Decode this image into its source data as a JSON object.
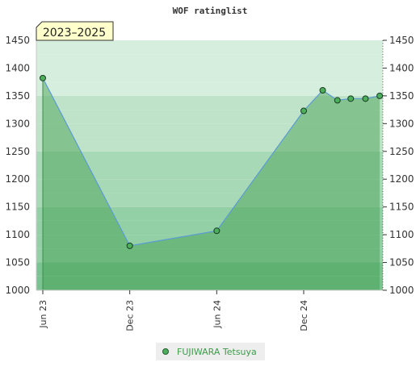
{
  "chart_data": {
    "type": "area",
    "title": "WOF ratinglist",
    "period_badge": "2023–2025",
    "xlabel": "",
    "ylabel": "",
    "ylim": [
      1000,
      1450
    ],
    "y_ticks": [
      1000,
      1050,
      1100,
      1150,
      1200,
      1250,
      1300,
      1350,
      1400,
      1450
    ],
    "x_ticks": [
      "Jun 23",
      "Dec 23",
      "Jun 24",
      "Dec 24"
    ],
    "x_tick_dates": [
      "2023-06-01",
      "2023-12-01",
      "2024-06-01",
      "2024-12-01"
    ],
    "grid": true,
    "legend_position": "bottom",
    "series": [
      {
        "name": "FUJIWARA Tetsuya",
        "color": "#3d9b4c",
        "line_color": "#5b9bd5",
        "points": [
          {
            "x": "2023-06-01",
            "y": 1382
          },
          {
            "x": "2023-12-01",
            "y": 1080
          },
          {
            "x": "2024-06-01",
            "y": 1107
          },
          {
            "x": "2024-12-01",
            "y": 1323
          },
          {
            "x": "2025-01-10",
            "y": 1360
          },
          {
            "x": "2025-02-10",
            "y": 1342
          },
          {
            "x": "2025-03-10",
            "y": 1345
          },
          {
            "x": "2025-04-10",
            "y": 1345
          },
          {
            "x": "2025-05-10",
            "y": 1350
          }
        ]
      }
    ]
  }
}
